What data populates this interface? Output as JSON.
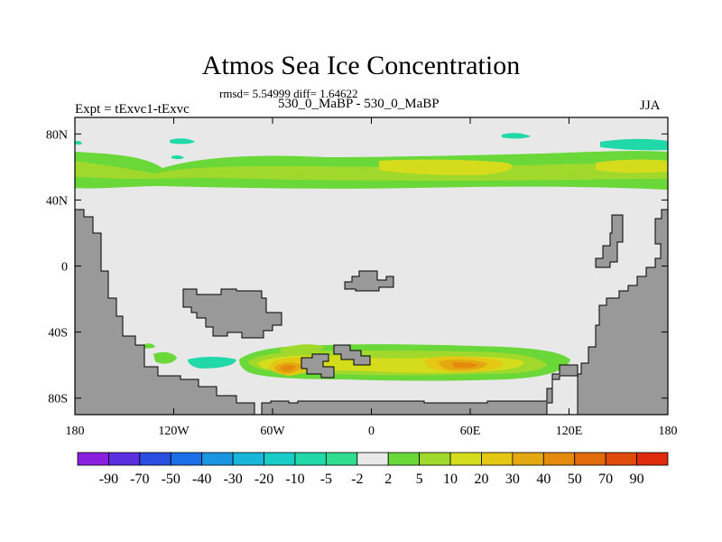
{
  "map": {
    "title": "Atmos Sea Ice Concentration",
    "stats": "rmsd= 5.54999 diff= 1.64622",
    "subtitle": "530_0_MaBP - 530_0_MaBP",
    "left_label": "Expt = tExvc1-tExvc",
    "right_label": "JJA",
    "lat_ticks": [
      {
        "value": 80,
        "label": "80N"
      },
      {
        "value": 40,
        "label": "40N"
      },
      {
        "value": 0,
        "label": "0"
      },
      {
        "value": -40,
        "label": "40S"
      },
      {
        "value": -80,
        "label": "80S"
      }
    ],
    "lon_ticks": [
      {
        "value": -180,
        "label": "180"
      },
      {
        "value": -120,
        "label": "120W"
      },
      {
        "value": -60,
        "label": "60W"
      },
      {
        "value": 0,
        "label": "0"
      },
      {
        "value": 60,
        "label": "60E"
      },
      {
        "value": 120,
        "label": "120E"
      },
      {
        "value": 180,
        "label": "180"
      }
    ],
    "lon_range": [
      -180,
      180
    ],
    "lat_range": [
      -90,
      90
    ],
    "colors": {
      "background": "#e8e8e8",
      "land": "#999999"
    }
  },
  "colorbar": {
    "labels": [
      "-90",
      "-70",
      "-50",
      "-40",
      "-30",
      "-20",
      "-10",
      "-5",
      "-2",
      "2",
      "5",
      "10",
      "20",
      "30",
      "40",
      "50",
      "70",
      "90"
    ],
    "colors": [
      "#8a1fe0",
      "#5a2fe0",
      "#2a4ee0",
      "#1a6ee8",
      "#1a96e0",
      "#18b6d8",
      "#19ccc6",
      "#20d8a8",
      "#30dc90",
      "#e8e8e8",
      "#6ad838",
      "#a0d82c",
      "#d4dc1c",
      "#e4c814",
      "#e4a810",
      "#e48a0c",
      "#e06a0c",
      "#e04a0c",
      "#e02a0c"
    ]
  }
}
